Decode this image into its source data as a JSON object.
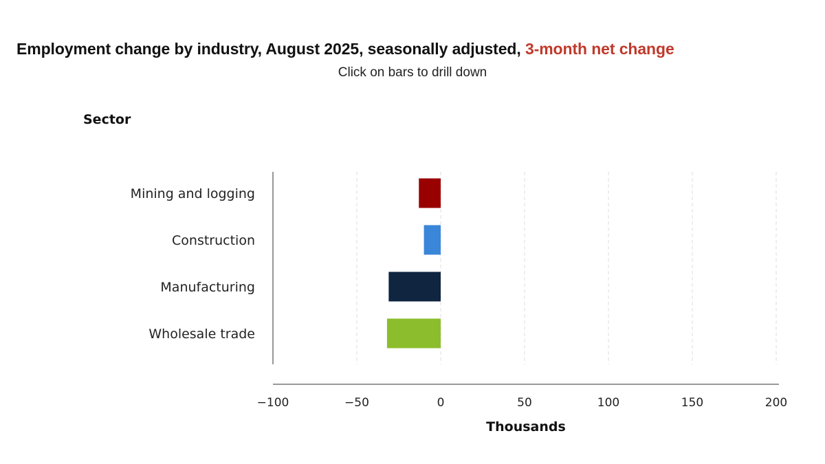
{
  "header": {
    "title_main": "Employment change by industry, August 2025, seasonally adjusted, ",
    "title_highlight": "3-month net change",
    "subtitle": "Click on bars to drill down"
  },
  "colors": {
    "highlight": "#c0392b",
    "axis": "#777777",
    "grid": "#dddddd"
  },
  "chart_data": {
    "type": "bar",
    "orientation": "horizontal",
    "title": "Employment change by industry, August 2025, seasonally adjusted, 3-month net change",
    "subtitle": "Click on bars to drill down",
    "ylabel": "Sector",
    "xlabel": "Thousands",
    "categories": [
      "Mining and logging",
      "Construction",
      "Manufacturing",
      "Wholesale trade"
    ],
    "values": [
      -13,
      -10,
      -31,
      -32
    ],
    "colors": [
      "#990000",
      "#3a86d8",
      "#0f2540",
      "#8cbd2c"
    ],
    "xlim": [
      -100,
      200
    ],
    "xticks": [
      -100,
      -50,
      0,
      50,
      100,
      150,
      200
    ],
    "xtick_labels": [
      "−100",
      "−50",
      "0",
      "50",
      "100",
      "150",
      "200"
    ],
    "grid": true
  }
}
